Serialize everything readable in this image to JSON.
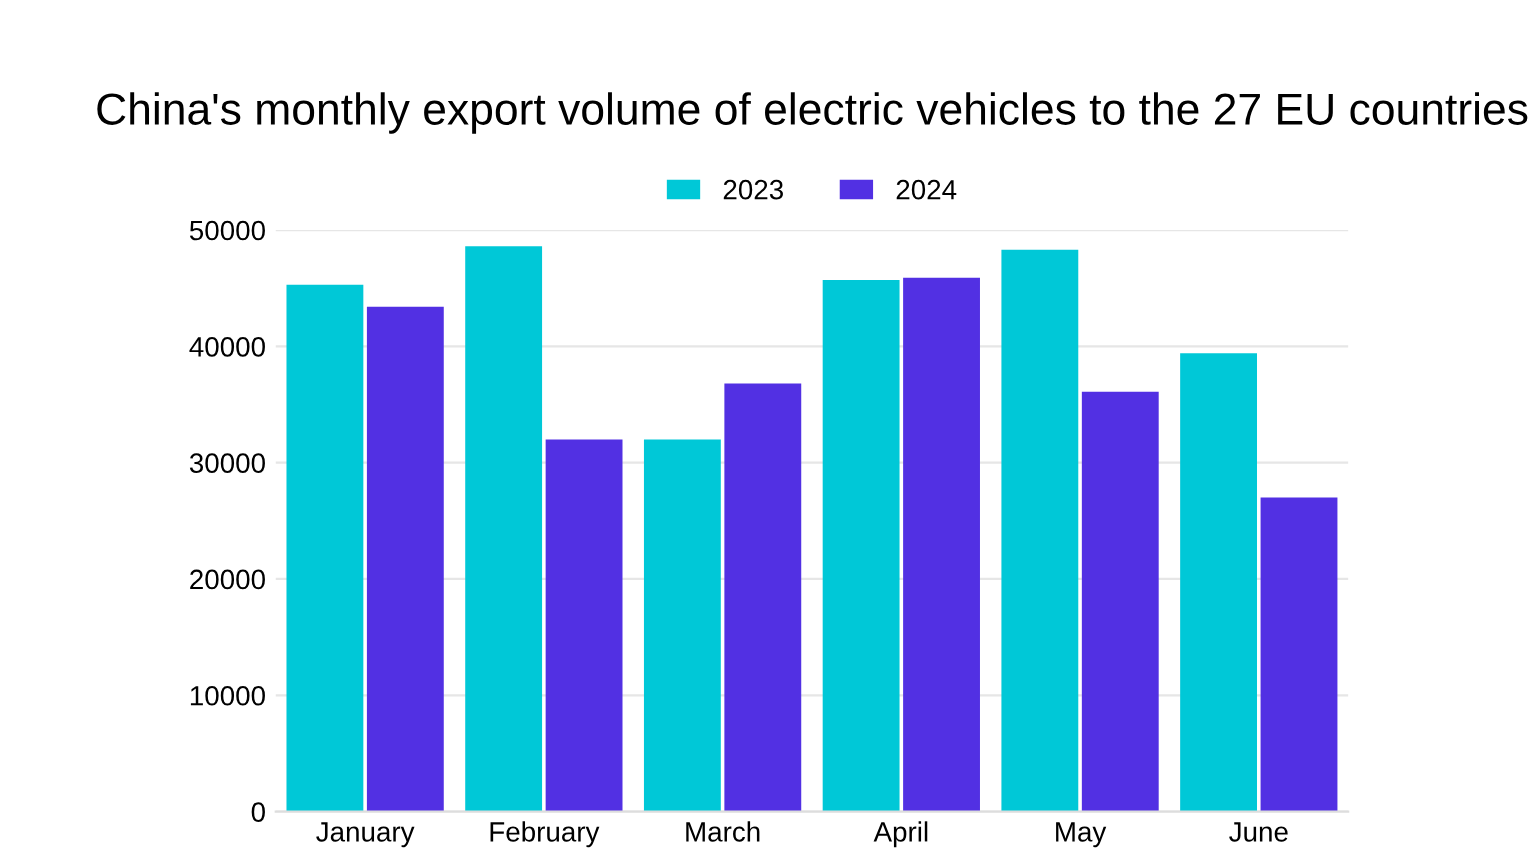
{
  "chart_data": {
    "type": "bar",
    "title": "China's monthly export volume of electric vehicles to the 27 EU countries",
    "categories": [
      "January",
      "February",
      "March",
      "April",
      "May",
      "June"
    ],
    "series": [
      {
        "name": "2023",
        "color": "#00c8d7",
        "values": [
          45300,
          48600,
          32000,
          45700,
          48300,
          39400
        ]
      },
      {
        "name": "2024",
        "color": "#5230e3",
        "values": [
          43400,
          32000,
          36800,
          45900,
          36100,
          27000
        ]
      }
    ],
    "ylim": [
      0,
      50000
    ],
    "yticks": [
      0,
      10000,
      20000,
      30000,
      40000,
      50000
    ],
    "grid": "y",
    "legend": "top"
  }
}
